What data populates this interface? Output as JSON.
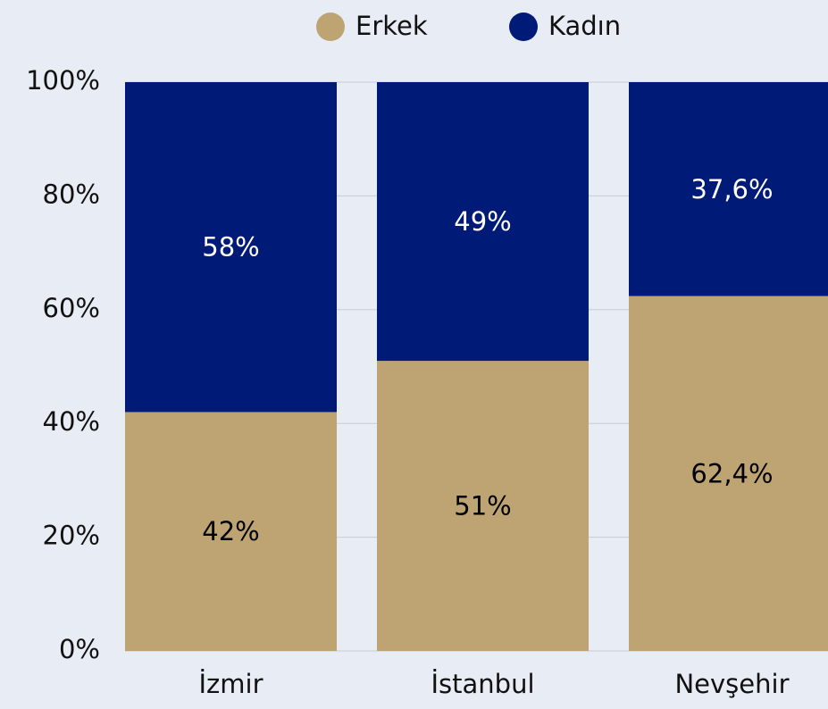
{
  "chart_data": {
    "type": "stacked_bar",
    "categories": [
      "İzmir",
      "İstanbul",
      "Nevşehir"
    ],
    "series": [
      {
        "name": "Erkek",
        "color": "#bfa473",
        "label_color": "#000000",
        "values": [
          42,
          51,
          62.4
        ],
        "value_labels": [
          "42%",
          "51%",
          "62,4%"
        ]
      },
      {
        "name": "Kadın",
        "color": "#001a78",
        "label_color": "#ffffff",
        "values": [
          58,
          49,
          37.6
        ],
        "value_labels": [
          "58%",
          "49%",
          "37,6%"
        ]
      }
    ],
    "ylim": [
      0,
      100
    ],
    "yticks": [
      {
        "value": 0,
        "label": "0%"
      },
      {
        "value": 20,
        "label": "20%"
      },
      {
        "value": 40,
        "label": "40%"
      },
      {
        "value": 60,
        "label": "60%"
      },
      {
        "value": 80,
        "label": "80%"
      },
      {
        "value": 100,
        "label": "100%"
      }
    ],
    "grid": true,
    "legend": "top"
  }
}
